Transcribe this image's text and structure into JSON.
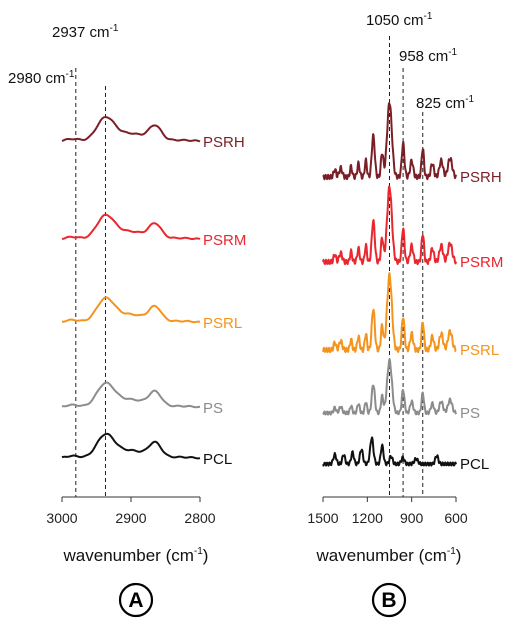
{
  "chart_data": [
    {
      "panel": "A",
      "type": "line",
      "xlabel": "wavenumber (cm⁻¹)",
      "xlim": [
        3000,
        2800
      ],
      "xticks": [
        3000,
        2900,
        2800
      ],
      "y_axis_values": false,
      "reference_lines": [
        {
          "x": 2980,
          "label": "2980 cm",
          "superscript": "-1"
        },
        {
          "x": 2937,
          "label": "2937 cm",
          "superscript": "-1"
        }
      ],
      "series": [
        {
          "name": "PSRH",
          "color": "#7B1F27",
          "peak_wavenumbers": [
            2937,
            2865
          ]
        },
        {
          "name": "PSRM",
          "color": "#E8272E",
          "peak_wavenumbers": [
            2937,
            2865
          ]
        },
        {
          "name": "PSRL",
          "color": "#F5941D",
          "peak_wavenumbers": [
            2937,
            2865
          ]
        },
        {
          "name": "PS",
          "color": "#8C8C8C",
          "peak_wavenumbers": [
            2937,
            2865
          ]
        },
        {
          "name": "PCL",
          "color": "#111111",
          "peak_wavenumbers": [
            2937,
            2865
          ]
        }
      ]
    },
    {
      "panel": "B",
      "type": "line",
      "xlabel": "wavenumber (cm⁻¹)",
      "xlim": [
        1500,
        600
      ],
      "xticks": [
        1500,
        1200,
        900,
        600
      ],
      "y_axis_values": false,
      "reference_lines": [
        {
          "x": 1050,
          "label": "1050 cm",
          "superscript": "-1"
        },
        {
          "x": 958,
          "label": "958 cm",
          "superscript": "-1"
        },
        {
          "x": 825,
          "label": "825 cm",
          "superscript": "-1"
        }
      ],
      "series": [
        {
          "name": "PSRH",
          "color": "#7B1F27",
          "peak_wavenumbers": [
            1160,
            1050,
            958,
            825
          ]
        },
        {
          "name": "PSRM",
          "color": "#E8272E",
          "peak_wavenumbers": [
            1160,
            1050,
            958,
            825
          ]
        },
        {
          "name": "PSRL",
          "color": "#F5941D",
          "peak_wavenumbers": [
            1160,
            1050,
            958,
            825
          ]
        },
        {
          "name": "PS",
          "color": "#8C8C8C",
          "peak_wavenumbers": [
            1160,
            1050,
            958,
            825
          ]
        },
        {
          "name": "PCL",
          "color": "#111111",
          "peak_wavenumbers": [
            1170,
            1100
          ]
        }
      ]
    }
  ],
  "panel_letters": [
    "A",
    "B"
  ]
}
